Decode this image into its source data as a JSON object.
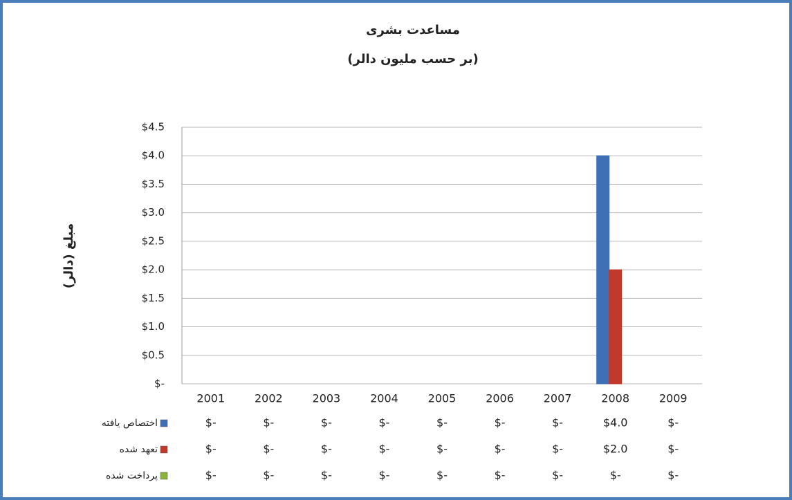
{
  "chart_data": {
    "type": "bar",
    "title": "مساعدت بشری",
    "subtitle": "(بر حسب مليون دالر)",
    "y_label": "مبلغ (دالر)",
    "categories": [
      "2001",
      "2002",
      "2003",
      "2004",
      "2005",
      "2006",
      "2007",
      "2008",
      "2009"
    ],
    "series": [
      {
        "name": "اختصاص یافته",
        "color": "#3f6fb5",
        "values": [
          0,
          0,
          0,
          0,
          0,
          0,
          0,
          4,
          0
        ],
        "value_labels": [
          "$-",
          "$-",
          "$-",
          "$-",
          "$-",
          "$-",
          "$-",
          "$4.0",
          "$-"
        ]
      },
      {
        "name": "تعهد شده",
        "color": "#c0392b",
        "values": [
          0,
          0,
          0,
          0,
          0,
          0,
          0,
          2,
          0
        ],
        "value_labels": [
          "$-",
          "$-",
          "$-",
          "$-",
          "$-",
          "$-",
          "$-",
          "$2.0",
          "$-"
        ]
      },
      {
        "name": "پرداخت شده",
        "color": "#8bb33a",
        "values": [
          0,
          0,
          0,
          0,
          0,
          0,
          0,
          0,
          0
        ],
        "value_labels": [
          "$-",
          "$-",
          "$-",
          "$-",
          "$-",
          "$-",
          "$-",
          "$-",
          "$-"
        ]
      }
    ],
    "ylim": [
      0,
      4.5
    ],
    "yticks": [
      {
        "value": 0,
        "label": "$-"
      },
      {
        "value": 0.5,
        "label": "$0.5"
      },
      {
        "value": 1,
        "label": "$1.0"
      },
      {
        "value": 1.5,
        "label": "$1.5"
      },
      {
        "value": 2,
        "label": "$2.0"
      },
      {
        "value": 2.5,
        "label": "$2.5"
      },
      {
        "value": 3,
        "label": "$3.0"
      },
      {
        "value": 3.5,
        "label": "$3.5"
      },
      {
        "value": 4,
        "label": "$4.0"
      },
      {
        "value": 4.5,
        "label": "$4.5"
      }
    ],
    "grid": true
  }
}
